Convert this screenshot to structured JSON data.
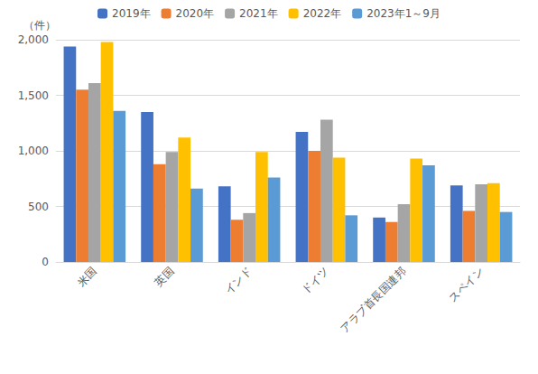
{
  "chart_data": {
    "type": "bar",
    "y_label": "（件）",
    "categories": [
      "米国",
      "英国",
      "インド",
      "ドイツ",
      "アラブ首長国連邦",
      "スペイン"
    ],
    "series": [
      {
        "name": "2019年",
        "color": "#4472c4",
        "values": [
          1940,
          1350,
          680,
          1170,
          400,
          690
        ]
      },
      {
        "name": "2020年",
        "color": "#ed7d31",
        "values": [
          1550,
          880,
          380,
          1000,
          360,
          460
        ]
      },
      {
        "name": "2021年",
        "color": "#a5a5a5",
        "values": [
          1610,
          990,
          440,
          1280,
          520,
          700
        ]
      },
      {
        "name": "2022年",
        "color": "#ffc000",
        "values": [
          1980,
          1120,
          990,
          940,
          930,
          710
        ]
      },
      {
        "name": "2023年1～9月",
        "color": "#5b9bd5",
        "values": [
          1360,
          660,
          760,
          420,
          870,
          450
        ]
      }
    ],
    "ylim": [
      0,
      2000
    ],
    "yticks": [
      0,
      500,
      {
        "value": 1000,
        "label": "1,000"
      },
      {
        "value": 1500,
        "label": "1,500"
      },
      {
        "value": 2000,
        "label": "2,000"
      }
    ],
    "grid": true,
    "legend": "top"
  }
}
